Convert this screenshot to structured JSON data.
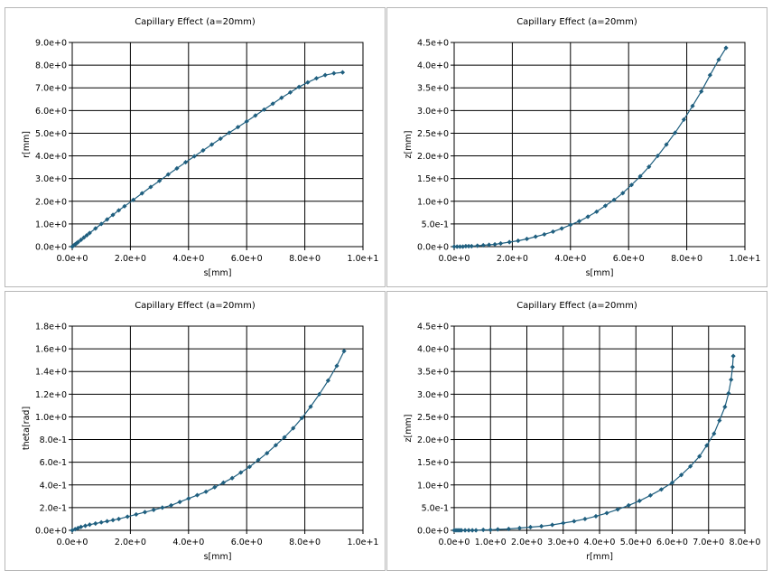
{
  "chart_data": [
    {
      "type": "scatter",
      "title": "Capillary Effect (a=20mm)",
      "xlabel": "s[mm]",
      "ylabel": "r[mm]",
      "xlim": [
        0,
        10
      ],
      "ylim": [
        0,
        9
      ],
      "xticks": [
        "0.0e+0",
        "2.0e+0",
        "4.0e+0",
        "6.0e+0",
        "8.0e+0",
        "1.0e+1"
      ],
      "yticks": [
        "0.0e+0",
        "1.0e+0",
        "2.0e+0",
        "3.0e+0",
        "4.0e+0",
        "5.0e+0",
        "6.0e+0",
        "7.0e+0",
        "8.0e+0",
        "9.0e+0"
      ],
      "grid": true,
      "series_color": "#1f5f7f",
      "x": [
        0.0,
        0.05,
        0.1,
        0.15,
        0.2,
        0.3,
        0.4,
        0.5,
        0.6,
        0.8,
        1.0,
        1.2,
        1.4,
        1.6,
        1.8,
        2.1,
        2.4,
        2.7,
        3.0,
        3.3,
        3.6,
        3.9,
        4.2,
        4.5,
        4.8,
        5.1,
        5.4,
        5.7,
        6.0,
        6.3,
        6.6,
        6.9,
        7.2,
        7.5,
        7.8,
        8.1,
        8.4,
        8.7,
        9.0,
        9.3
      ],
      "y": [
        0.0,
        0.05,
        0.1,
        0.15,
        0.2,
        0.3,
        0.4,
        0.5,
        0.6,
        0.8,
        1.0,
        1.2,
        1.4,
        1.6,
        1.78,
        2.06,
        2.35,
        2.63,
        2.9,
        3.18,
        3.45,
        3.72,
        3.98,
        4.24,
        4.5,
        4.76,
        5.02,
        5.27,
        5.52,
        5.78,
        6.04,
        6.3,
        6.56,
        6.8,
        7.04,
        7.24,
        7.42,
        7.56,
        7.64,
        7.68
      ]
    },
    {
      "type": "scatter",
      "title": "Capillary Effect (a=20mm)",
      "xlabel": "s[mm]",
      "ylabel": "z[mm]",
      "xlim": [
        0,
        10
      ],
      "ylim": [
        0,
        4.5
      ],
      "xticks": [
        "0.0e+0",
        "2.0e+0",
        "4.0e+0",
        "6.0e+0",
        "8.0e+0",
        "1.0e+1"
      ],
      "yticks": [
        "0.0e+0",
        "5.0e-1",
        "1.0e+0",
        "1.5e+0",
        "2.0e+0",
        "2.5e+0",
        "3.0e+0",
        "3.5e+0",
        "4.0e+0",
        "4.5e+0"
      ],
      "grid": true,
      "series_color": "#1f5f7f",
      "x": [
        0.0,
        0.1,
        0.2,
        0.3,
        0.4,
        0.5,
        0.6,
        0.8,
        1.0,
        1.2,
        1.4,
        1.6,
        1.9,
        2.2,
        2.5,
        2.8,
        3.1,
        3.4,
        3.7,
        4.0,
        4.3,
        4.6,
        4.9,
        5.2,
        5.5,
        5.8,
        6.1,
        6.4,
        6.7,
        7.0,
        7.3,
        7.6,
        7.9,
        8.2,
        8.5,
        8.8,
        9.1,
        9.35
      ],
      "y": [
        0.0,
        0.0,
        0.0,
        0.0,
        0.01,
        0.01,
        0.01,
        0.02,
        0.03,
        0.04,
        0.05,
        0.07,
        0.1,
        0.13,
        0.17,
        0.22,
        0.27,
        0.33,
        0.4,
        0.48,
        0.56,
        0.66,
        0.77,
        0.9,
        1.03,
        1.18,
        1.36,
        1.55,
        1.76,
        2.0,
        2.25,
        2.51,
        2.8,
        3.1,
        3.42,
        3.78,
        4.12,
        4.38
      ]
    },
    {
      "type": "scatter",
      "title": "Capillary Effect (a=20mm)",
      "xlabel": "s[mm]",
      "ylabel": "theta[rad]",
      "xlim": [
        0,
        10
      ],
      "ylim": [
        0,
        1.8
      ],
      "xticks": [
        "0.0e+0",
        "2.0e+0",
        "4.0e+0",
        "6.0e+0",
        "8.0e+0",
        "1.0e+1"
      ],
      "yticks": [
        "0.0e+0",
        "2.0e-1",
        "4.0e-1",
        "6.0e-1",
        "8.0e-1",
        "1.0e+0",
        "1.2e+0",
        "1.4e+0",
        "1.6e+0",
        "1.8e+0"
      ],
      "grid": true,
      "series_color": "#1f5f7f",
      "x": [
        0.0,
        0.1,
        0.2,
        0.3,
        0.45,
        0.6,
        0.8,
        1.0,
        1.2,
        1.4,
        1.6,
        1.9,
        2.2,
        2.5,
        2.8,
        3.1,
        3.4,
        3.7,
        4.0,
        4.3,
        4.6,
        4.9,
        5.2,
        5.5,
        5.8,
        6.1,
        6.4,
        6.7,
        7.0,
        7.3,
        7.6,
        7.9,
        8.2,
        8.5,
        8.8,
        9.1,
        9.35
      ],
      "y": [
        0.0,
        0.01,
        0.02,
        0.03,
        0.04,
        0.05,
        0.06,
        0.07,
        0.08,
        0.09,
        0.1,
        0.12,
        0.14,
        0.16,
        0.18,
        0.2,
        0.22,
        0.25,
        0.28,
        0.31,
        0.34,
        0.38,
        0.42,
        0.46,
        0.51,
        0.56,
        0.62,
        0.68,
        0.75,
        0.82,
        0.9,
        0.99,
        1.09,
        1.2,
        1.32,
        1.45,
        1.58
      ]
    },
    {
      "type": "scatter",
      "title": "Capillary Effect (a=20mm)",
      "xlabel": "r[mm]",
      "ylabel": "z[mm]",
      "xlim": [
        0,
        8
      ],
      "ylim": [
        0,
        4.5
      ],
      "xticks": [
        "0.0e+0",
        "1.0e+0",
        "2.0e+0",
        "3.0e+0",
        "4.0e+0",
        "5.0e+0",
        "6.0e+0",
        "7.0e+0",
        "8.0e+0"
      ],
      "yticks": [
        "0.0e+0",
        "5.0e-1",
        "1.0e+0",
        "1.5e+0",
        "2.0e+0",
        "2.5e+0",
        "3.0e+0",
        "3.5e+0",
        "4.0e+0",
        "4.5e+0"
      ],
      "grid": true,
      "series_color": "#1f5f7f",
      "x": [
        0.0,
        0.05,
        0.1,
        0.15,
        0.2,
        0.3,
        0.4,
        0.5,
        0.6,
        0.8,
        1.0,
        1.2,
        1.5,
        1.8,
        2.1,
        2.4,
        2.7,
        3.0,
        3.3,
        3.6,
        3.9,
        4.2,
        4.5,
        4.8,
        5.1,
        5.4,
        5.7,
        6.0,
        6.25,
        6.5,
        6.75,
        6.95,
        7.15,
        7.3,
        7.45,
        7.55,
        7.62,
        7.66,
        7.68
      ],
      "y": [
        0.0,
        0.0,
        0.0,
        0.0,
        0.0,
        0.0,
        0.0,
        0.0,
        0.0,
        0.01,
        0.01,
        0.02,
        0.03,
        0.05,
        0.07,
        0.09,
        0.12,
        0.16,
        0.2,
        0.25,
        0.31,
        0.38,
        0.46,
        0.55,
        0.65,
        0.77,
        0.9,
        1.05,
        1.22,
        1.41,
        1.63,
        1.87,
        2.13,
        2.42,
        2.72,
        3.02,
        3.32,
        3.6,
        3.84
      ]
    }
  ]
}
